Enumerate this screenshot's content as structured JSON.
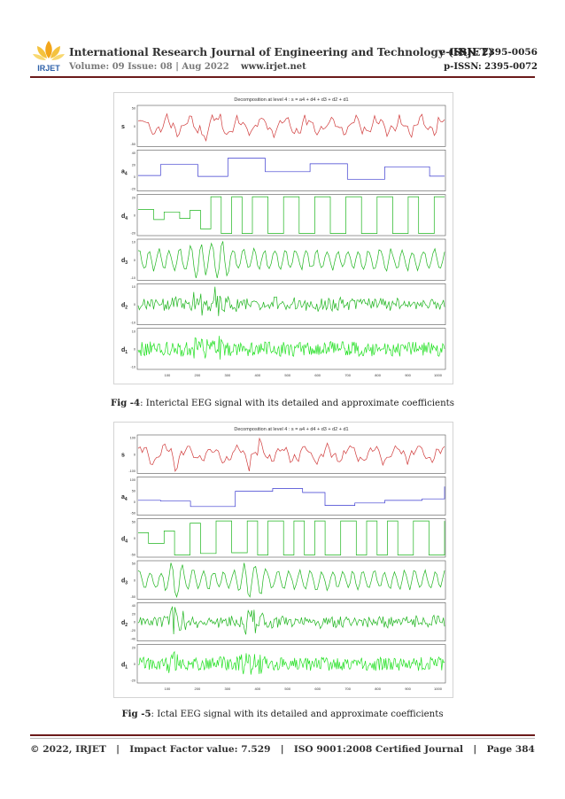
{
  "header": {
    "logo_text": "IRJET",
    "journal_title": "International Research Journal of Engineering and Technology (IRJET)",
    "eissn": "e-ISSN: 2395-0056",
    "volume": "Volume: 09 Issue: 08 | Aug 2022",
    "website": "www.irjet.net",
    "pissn": "p-ISSN: 2395-0072"
  },
  "figures": [
    {
      "caption_label": "Fig -4",
      "caption_text": ": Interictal EEG signal with its detailed and approximate coefficients",
      "chart_data": {
        "type": "line",
        "title": "Decomposition at level 4 : s = a4 + d4 + d3 + d2 + d1",
        "x_ticks": [
          "100",
          "200",
          "300",
          "400",
          "500",
          "600",
          "700",
          "800",
          "900",
          "1000"
        ],
        "series": [
          {
            "name": "s",
            "color": "#d03a3a",
            "yticks": [
              "50",
              "0",
              "-50"
            ]
          },
          {
            "name": "a4",
            "color": "#3a3acf",
            "yticks": [
              "40",
              "20",
              "0",
              "-20"
            ]
          },
          {
            "name": "d4",
            "color": "#1fb51f",
            "yticks": [
              "20",
              "0",
              "-20"
            ]
          },
          {
            "name": "d3",
            "color": "#1fb51f",
            "yticks": [
              "10",
              "0",
              "-10"
            ]
          },
          {
            "name": "d2",
            "color": "#1fb51f",
            "yticks": [
              "10",
              "0",
              "-10"
            ]
          },
          {
            "name": "d1",
            "color": "#22e022",
            "yticks": [
              "10",
              "0",
              "-10"
            ]
          }
        ]
      }
    },
    {
      "caption_label": "Fig -5",
      "caption_text": ": Ictal EEG signal with its detailed and approximate coefficients",
      "chart_data": {
        "type": "line",
        "title": "Decomposition at level 4 : s = a4 + d4 + d3 + d2 + d1",
        "x_ticks": [
          "100",
          "200",
          "300",
          "400",
          "500",
          "600",
          "700",
          "800",
          "900",
          "1000"
        ],
        "series": [
          {
            "name": "s",
            "color": "#d03a3a",
            "yticks": [
              "100",
              "0",
              "-100"
            ]
          },
          {
            "name": "a4",
            "color": "#3a3acf",
            "yticks": [
              "100",
              "50",
              "0",
              "-50"
            ]
          },
          {
            "name": "d4",
            "color": "#1fb51f",
            "yticks": [
              "50",
              "0",
              "-50"
            ]
          },
          {
            "name": "d3",
            "color": "#1fb51f",
            "yticks": [
              "50",
              "0",
              "-50"
            ]
          },
          {
            "name": "d2",
            "color": "#1fb51f",
            "yticks": [
              "40",
              "20",
              "0",
              "-20",
              "-40"
            ]
          },
          {
            "name": "d1",
            "color": "#22e022",
            "yticks": [
              "20",
              "0",
              "-20"
            ]
          }
        ]
      }
    }
  ],
  "footer": {
    "copyright": "© 2022, IRJET",
    "impact": "Impact Factor value: 7.529",
    "iso": "ISO 9001:2008 Certified Journal",
    "page": "Page 384",
    "separator": "|"
  }
}
